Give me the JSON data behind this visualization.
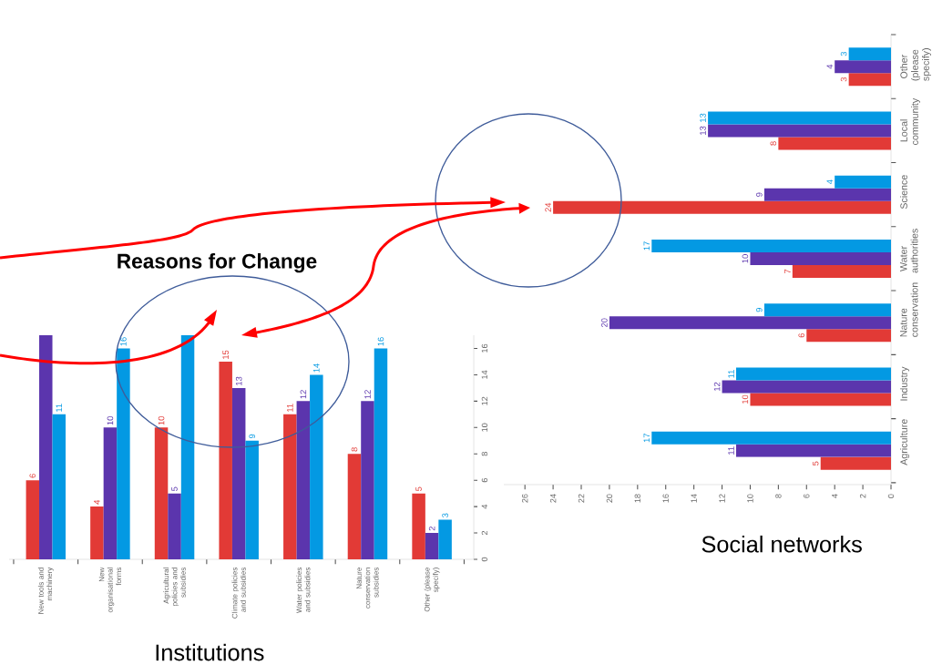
{
  "chart_data": [
    {
      "type": "bar",
      "title": "Reasons for Change",
      "xlabel": "Institutions",
      "categories": [
        "New tools and machinery",
        "New organisational forms",
        "Agricultural policies and subsidies",
        "Climate policies and subsidies",
        "Water policies and subsidies",
        "Nature conservation subsidies",
        "Other (please specify)"
      ],
      "series": [
        {
          "color": "#e23a36",
          "values": [
            6,
            4,
            10,
            15,
            11,
            8,
            5
          ],
          "value_labels": [
            "6",
            "4",
            "10",
            "15",
            "11",
            "8",
            "5"
          ]
        },
        {
          "color": "#5b35ad",
          "values": [
            17,
            10,
            5,
            13,
            12,
            12,
            2
          ],
          "value_labels": [
            null,
            "10",
            "5",
            "13",
            "12",
            "12",
            "2"
          ]
        },
        {
          "color": "#0399e3",
          "values": [
            11,
            16,
            17,
            9,
            14,
            16,
            3
          ],
          "value_labels": [
            "11",
            "16",
            null,
            "9",
            "14",
            "16",
            "3"
          ]
        }
      ],
      "ylim": [
        0,
        17
      ],
      "yticks": [
        0,
        2,
        4,
        6,
        8,
        10,
        12,
        14,
        16
      ]
    },
    {
      "type": "bar",
      "orientation": "horizontal",
      "xlabel": "Social networks",
      "categories": [
        "Other (please specify)",
        "Local community",
        "Science",
        "Water authorities",
        "Nature conservation",
        "Industry",
        "Agriculture"
      ],
      "series": [
        {
          "color": "#e23a36",
          "values": [
            3,
            8,
            24,
            7,
            6,
            10,
            5
          ]
        },
        {
          "color": "#5b35ad",
          "values": [
            4,
            13,
            9,
            10,
            20,
            12,
            11
          ]
        },
        {
          "color": "#0399e3",
          "values": [
            3,
            13,
            4,
            17,
            9,
            11,
            17
          ]
        }
      ],
      "xlim": [
        27.5,
        0
      ],
      "xticks": [
        0,
        2,
        4,
        6,
        8,
        10,
        12,
        14,
        16,
        18,
        20,
        22,
        24,
        26
      ],
      "data_labels": true,
      "annotations": [
        "2"
      ]
    }
  ]
}
